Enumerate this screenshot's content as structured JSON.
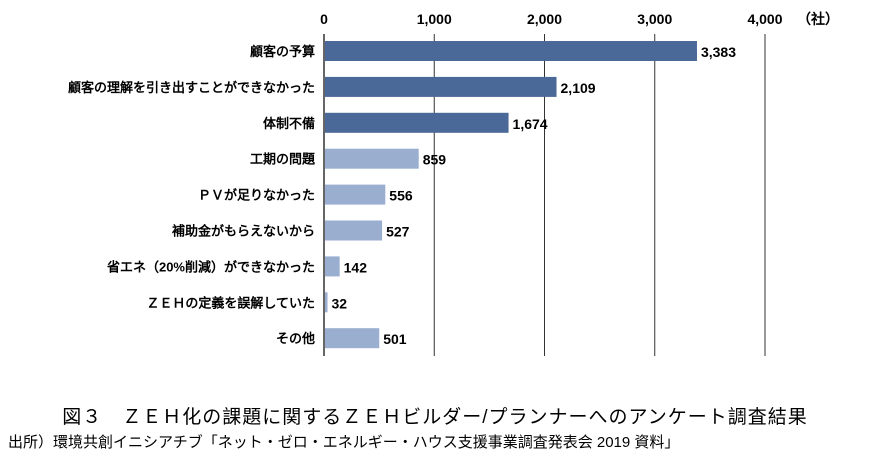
{
  "chart_data": {
    "type": "bar",
    "orientation": "horizontal",
    "categories": [
      "顧客の予算",
      "顧客の理解を引き出すことができなかった",
      "体制不備",
      "工期の問題",
      "ＰＶが足りなかった",
      "補助金がもらえないから",
      "省エネ（20%削減）ができなかった",
      "ＺＥＨの定義を誤解していた",
      "その他"
    ],
    "values": [
      3383,
      2109,
      1674,
      859,
      556,
      527,
      142,
      32,
      501
    ],
    "value_labels": [
      "3,383",
      "2,109",
      "1,674",
      "859",
      "556",
      "527",
      "142",
      "32",
      "501"
    ],
    "highlight_count": 3,
    "xlim": [
      0,
      4000
    ],
    "xticks": [
      0,
      1000,
      2000,
      3000,
      4000
    ],
    "xtick_labels": [
      "0",
      "1,000",
      "2,000",
      "3,000",
      "4,000"
    ],
    "unit_label": "（社）",
    "grid": true,
    "colors": {
      "highlight": "#4a6898",
      "normal": "#9aaed0",
      "grid": "#333333"
    }
  },
  "caption": {
    "title": "図３　ＺＥＨ化の課題に関するＺＥＨビルダー/プランナーへのアンケート調査結果",
    "source": "出所）環境共創イニシアチブ「ネット・ゼロ・エネルギー・ハウス支援事業調査発表会 2019 資料」"
  }
}
